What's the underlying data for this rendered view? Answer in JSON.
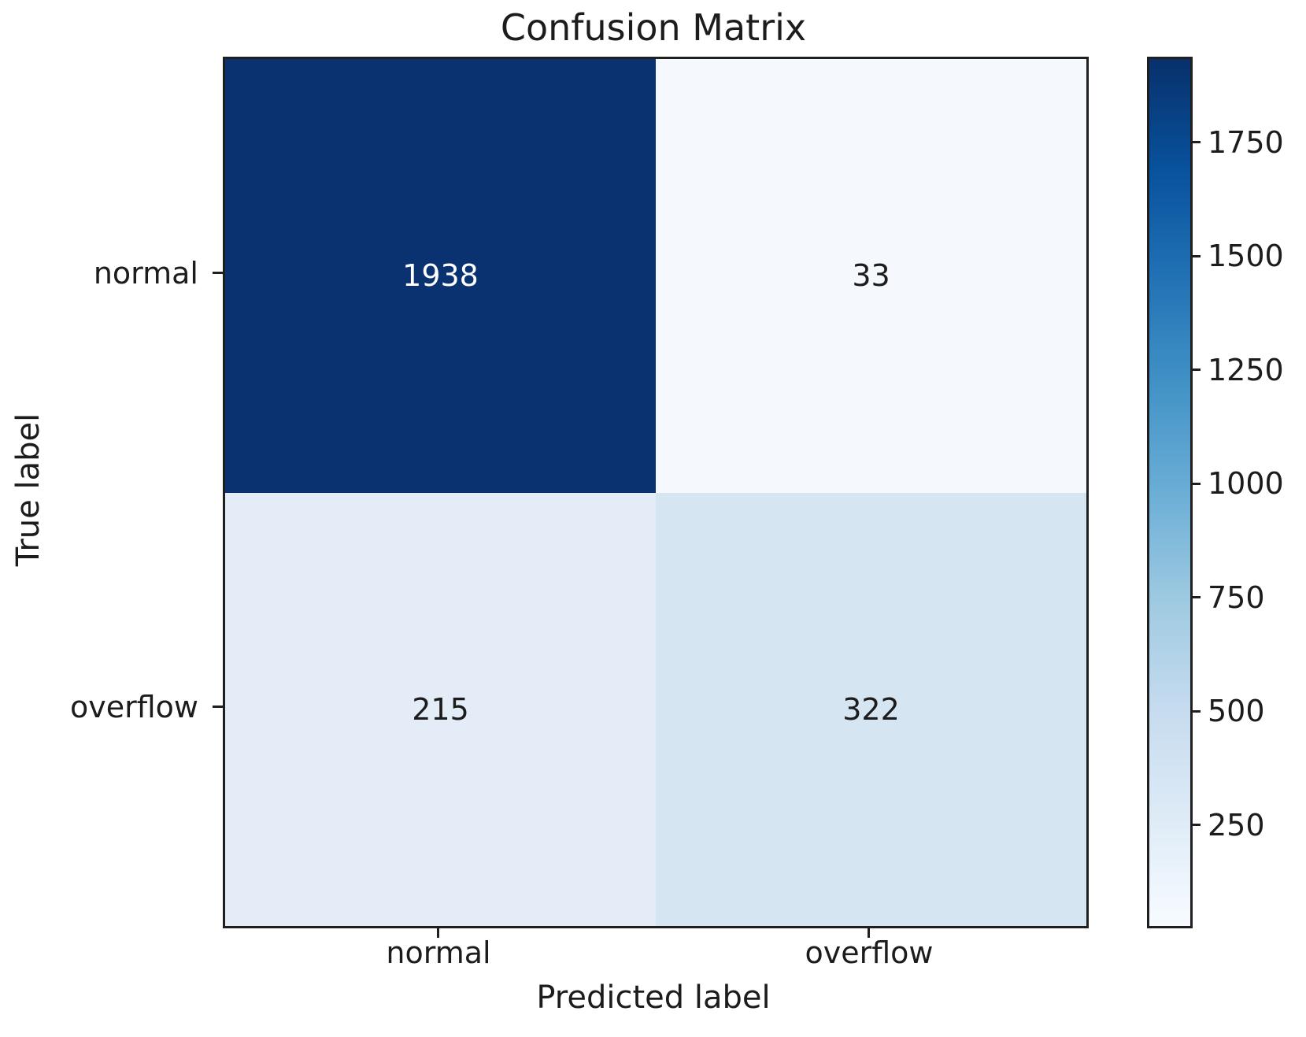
{
  "chart_data": {
    "type": "heatmap",
    "title": "Confusion Matrix",
    "xlabel": "Predicted label",
    "ylabel": "True label",
    "x_tick_labels": [
      "normal",
      "overflow"
    ],
    "y_tick_labels": [
      "normal",
      "overflow"
    ],
    "matrix": [
      [
        1938,
        33
      ],
      [
        215,
        322
      ]
    ],
    "cell_colors": [
      [
        "#0a3170",
        "#f5f9fe"
      ],
      [
        "#e4ecf8",
        "#d6e5f2"
      ]
    ],
    "cell_text_colors": [
      [
        "#ffffff",
        "#1c1c1c"
      ],
      [
        "#1c1c1c",
        "#1c1c1c"
      ]
    ],
    "colormap": "Blues",
    "legend": "none",
    "grid": "off",
    "colorbar": {
      "ticks": [
        1750,
        1500,
        1250,
        1000,
        750,
        500,
        250
      ],
      "vmin": 33,
      "vmax": 1938,
      "gradient_stops_top_to_bottom": [
        "#08306b",
        "#08519c",
        "#2171b5",
        "#4292c6",
        "#6baed6",
        "#9ecae1",
        "#c6dbef",
        "#deebf7",
        "#f7fbff"
      ]
    }
  }
}
